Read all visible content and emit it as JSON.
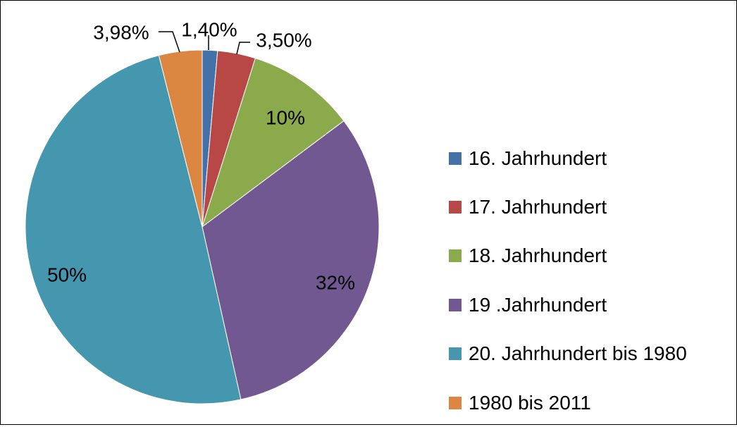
{
  "chart_data": {
    "type": "pie",
    "title": "",
    "slices": [
      {
        "label": "16. Jahrhundert",
        "value": 1.4,
        "display": "1,40%",
        "color": "#4472A8"
      },
      {
        "label": "17. Jahrhundert",
        "value": 3.5,
        "display": "3,50%",
        "color": "#B84845"
      },
      {
        "label": "18. Jahrhundert",
        "value": 10,
        "display": "10%",
        "color": "#8BAA4B"
      },
      {
        "label": "19 .Jahrhundert",
        "value": 32,
        "display": "32%",
        "color": "#715891"
      },
      {
        "label": "20. Jahrhundert bis 1980",
        "value": 50,
        "display": "50%",
        "color": "#4497AF"
      },
      {
        "label": "1980 bis 2011",
        "value": 3.98,
        "display": "3,98%",
        "color": "#DB8741"
      }
    ],
    "legend_position": "right"
  }
}
